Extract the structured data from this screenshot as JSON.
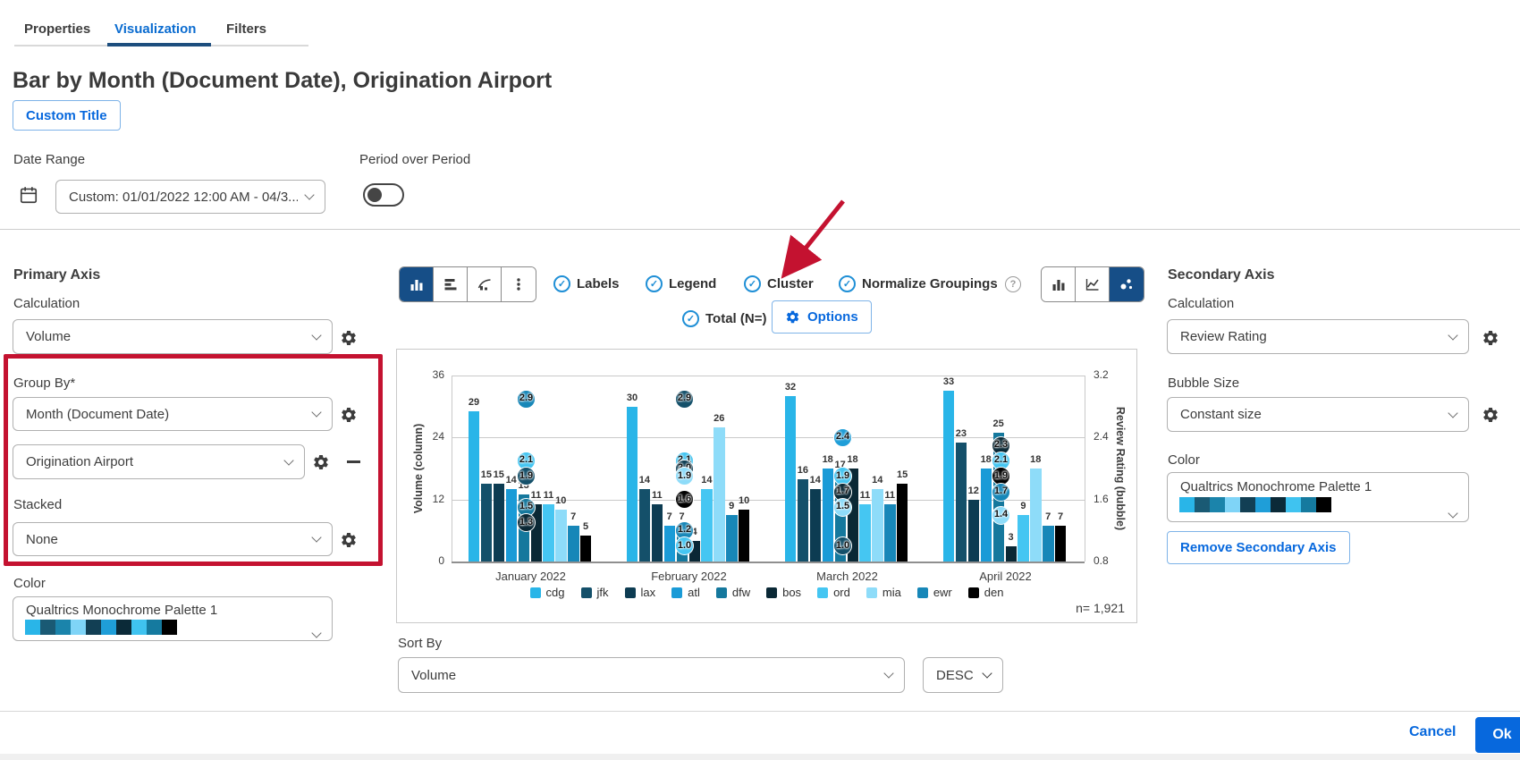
{
  "tabs": [
    {
      "label": "Properties",
      "active": false
    },
    {
      "label": "Visualization",
      "active": true
    },
    {
      "label": "Filters",
      "active": false
    }
  ],
  "page_title": "Bar by Month (Document Date), Origination Airport",
  "custom_title_button": "Custom Title",
  "date_range": {
    "label": "Date Range",
    "value": "Custom: 01/01/2022 12:00 AM - 04/3..."
  },
  "period_over_period": {
    "label": "Period over Period",
    "enabled": false
  },
  "primary_axis": {
    "heading": "Primary Axis",
    "calculation_label": "Calculation",
    "calculation_value": "Volume",
    "group_by_label": "Group By*",
    "group_by_values": [
      "Month (Document Date)",
      "Origination Airport"
    ],
    "stacked_label": "Stacked",
    "stacked_value": "None",
    "color_label": "Color",
    "palette_name": "Qualtrics Monochrome Palette 1"
  },
  "chart_toolbar": {
    "toggles": [
      "Labels",
      "Legend",
      "Cluster",
      "Normalize Groupings"
    ],
    "total_label": "Total (N=)",
    "options_label": "Options",
    "chart_type_buttons_left": [
      {
        "icon": "vertical-bar-chart",
        "active": true
      },
      {
        "icon": "horizontal-bar-chart",
        "active": false
      },
      {
        "icon": "pareto-chart",
        "active": false
      },
      {
        "icon": "more-options-kebab",
        "active": false
      }
    ],
    "chart_type_buttons_right": [
      {
        "icon": "bar-chart",
        "active": false
      },
      {
        "icon": "line-chart",
        "active": false
      },
      {
        "icon": "bubble-chart",
        "active": true
      }
    ]
  },
  "secondary_axis": {
    "heading": "Secondary Axis",
    "calculation_label": "Calculation",
    "calculation_value": "Review Rating",
    "bubble_size_label": "Bubble Size",
    "bubble_size_value": "Constant size",
    "color_label": "Color",
    "palette_name": "Qualtrics Monochrome Palette 1",
    "remove_button": "Remove Secondary Axis"
  },
  "sort_by": {
    "label": "Sort By",
    "value": "Volume",
    "direction": "DESC"
  },
  "footer": {
    "cancel": "Cancel",
    "ok": "Ok"
  },
  "accent_colors": {
    "primary_blue": "#0768dd",
    "check_blue": "#1f8fd6",
    "active_segment": "#164e87",
    "annotation_red": "#c41230"
  },
  "palette": [
    "#29b5e8",
    "#1a5a74",
    "#1b84ab",
    "#7fd4f7",
    "#123f54",
    "#1f9ed8",
    "#0b2a38",
    "#3fc3f0",
    "#157a9f",
    "#000000"
  ],
  "chart_data": {
    "type": "bar",
    "categories": [
      "January 2022",
      "February 2022",
      "March 2022",
      "April 2022"
    ],
    "series": [
      {
        "name": "cdg",
        "color": "#29b5e8",
        "values": [
          29,
          30,
          32,
          33
        ]
      },
      {
        "name": "jfk",
        "color": "#14506a",
        "values": [
          15,
          14,
          16,
          23
        ]
      },
      {
        "name": "lax",
        "color": "#0d3c52",
        "values": [
          15,
          11,
          14,
          12
        ]
      },
      {
        "name": "atl",
        "color": "#1a9bd7",
        "values": [
          14,
          7,
          18,
          18
        ]
      },
      {
        "name": "dfw",
        "color": "#15789d",
        "values": [
          13,
          7,
          17,
          25
        ]
      },
      {
        "name": "bos",
        "color": "#0a2835",
        "values": [
          11,
          4,
          18,
          3
        ]
      },
      {
        "name": "ord",
        "color": "#45c6f2",
        "values": [
          11,
          14,
          11,
          9
        ]
      },
      {
        "name": "mia",
        "color": "#8edcf9",
        "values": [
          10,
          26,
          14,
          18
        ]
      },
      {
        "name": "ewr",
        "color": "#1787b8",
        "values": [
          7,
          9,
          11,
          7
        ]
      },
      {
        "name": "den",
        "color": "#000000",
        "values": [
          5,
          10,
          15,
          7
        ]
      }
    ],
    "bubbles": [
      {
        "category": "January 2022",
        "ratings": [
          {
            "value": 2.9,
            "color": "#1787b8"
          },
          {
            "value": 2.1,
            "color": "#45c6f2"
          },
          {
            "value": 1.9,
            "color": "#14506a"
          },
          {
            "value": 1.5,
            "color": "#15789d"
          },
          {
            "value": 1.3,
            "color": "#0a2835"
          }
        ]
      },
      {
        "category": "February 2022",
        "ratings": [
          {
            "value": 2.9,
            "color": "#14506a"
          },
          {
            "value": 2.1,
            "color": "#45c6f2"
          },
          {
            "value": 2.0,
            "color": "#0d3c52"
          },
          {
            "value": 1.9,
            "color": "#8edcf9"
          },
          {
            "value": 1.6,
            "color": "#000000"
          },
          {
            "value": 1.2,
            "color": "#1787b8"
          },
          {
            "value": 1.0,
            "color": "#45c6f2"
          }
        ]
      },
      {
        "category": "March 2022",
        "ratings": [
          {
            "value": 2.4,
            "color": "#1f9ed8"
          },
          {
            "value": 1.9,
            "color": "#45c6f2"
          },
          {
            "value": 1.7,
            "color": "#0a2835"
          },
          {
            "value": 1.5,
            "color": "#8edcf9"
          },
          {
            "value": 1.0,
            "color": "#14506a"
          }
        ]
      },
      {
        "category": "April 2022",
        "ratings": [
          {
            "value": 2.3,
            "color": "#0a2835"
          },
          {
            "value": 2.1,
            "color": "#45c6f2"
          },
          {
            "value": 1.9,
            "color": "#000000"
          },
          {
            "value": 1.7,
            "color": "#1787b8"
          },
          {
            "value": 1.4,
            "color": "#8edcf9"
          }
        ]
      }
    ],
    "y_left": {
      "label": "Volume (column)",
      "ticks": [
        36,
        24,
        12,
        0
      ],
      "max": 36
    },
    "y_right": {
      "label": "Review Rating (bubble)",
      "ticks": [
        3.2,
        2.4,
        1.6,
        0.8
      ]
    },
    "n_label": "n= 1,921",
    "legend_position": "bottom",
    "grid": true
  }
}
